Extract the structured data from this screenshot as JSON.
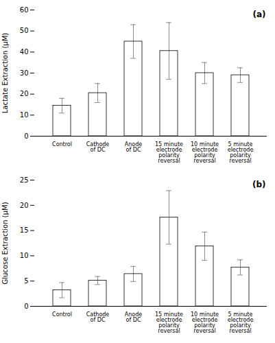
{
  "chart_data": [
    {
      "type": "bar",
      "categories": [
        "Control",
        "Cathode\nof DC",
        "Anode\nof DC",
        "15 minute\nelectrode\npolarity\nreversal",
        "10 minute\nelectrode\npolarity\nreversal",
        "5 minute\nelectrode\npolarity\nreversal"
      ],
      "values": [
        14.5,
        20.5,
        45.0,
        40.5,
        30.0,
        29.0
      ],
      "errors": [
        3.5,
        4.5,
        8.0,
        13.5,
        5.0,
        3.5
      ],
      "ylabel": "Lactate Extraction (μM)",
      "ylim": [
        0,
        60
      ],
      "yticks": [
        0,
        10,
        20,
        30,
        40,
        50,
        60
      ],
      "annotation": "(a)",
      "color": "#ffffff"
    },
    {
      "type": "bar",
      "categories": [
        "Control",
        "Cathode\nof DC",
        "Anode\nof DC",
        "15 minute\nelectrode\npolarity\nreversal",
        "10 minute\nelectrode\npolarity\nreversal",
        "5 minute\nelectrode\npolarity\nreversal"
      ],
      "values": [
        3.2,
        5.1,
        6.4,
        17.6,
        11.9,
        7.7
      ],
      "errors": [
        1.5,
        0.8,
        1.5,
        5.3,
        2.8,
        1.5
      ],
      "ylabel": "Glucose Extraction (μM)",
      "ylim": [
        0,
        25
      ],
      "yticks": [
        0,
        5,
        10,
        15,
        20,
        25
      ],
      "annotation": "(b)",
      "color": "#ffffff"
    }
  ]
}
